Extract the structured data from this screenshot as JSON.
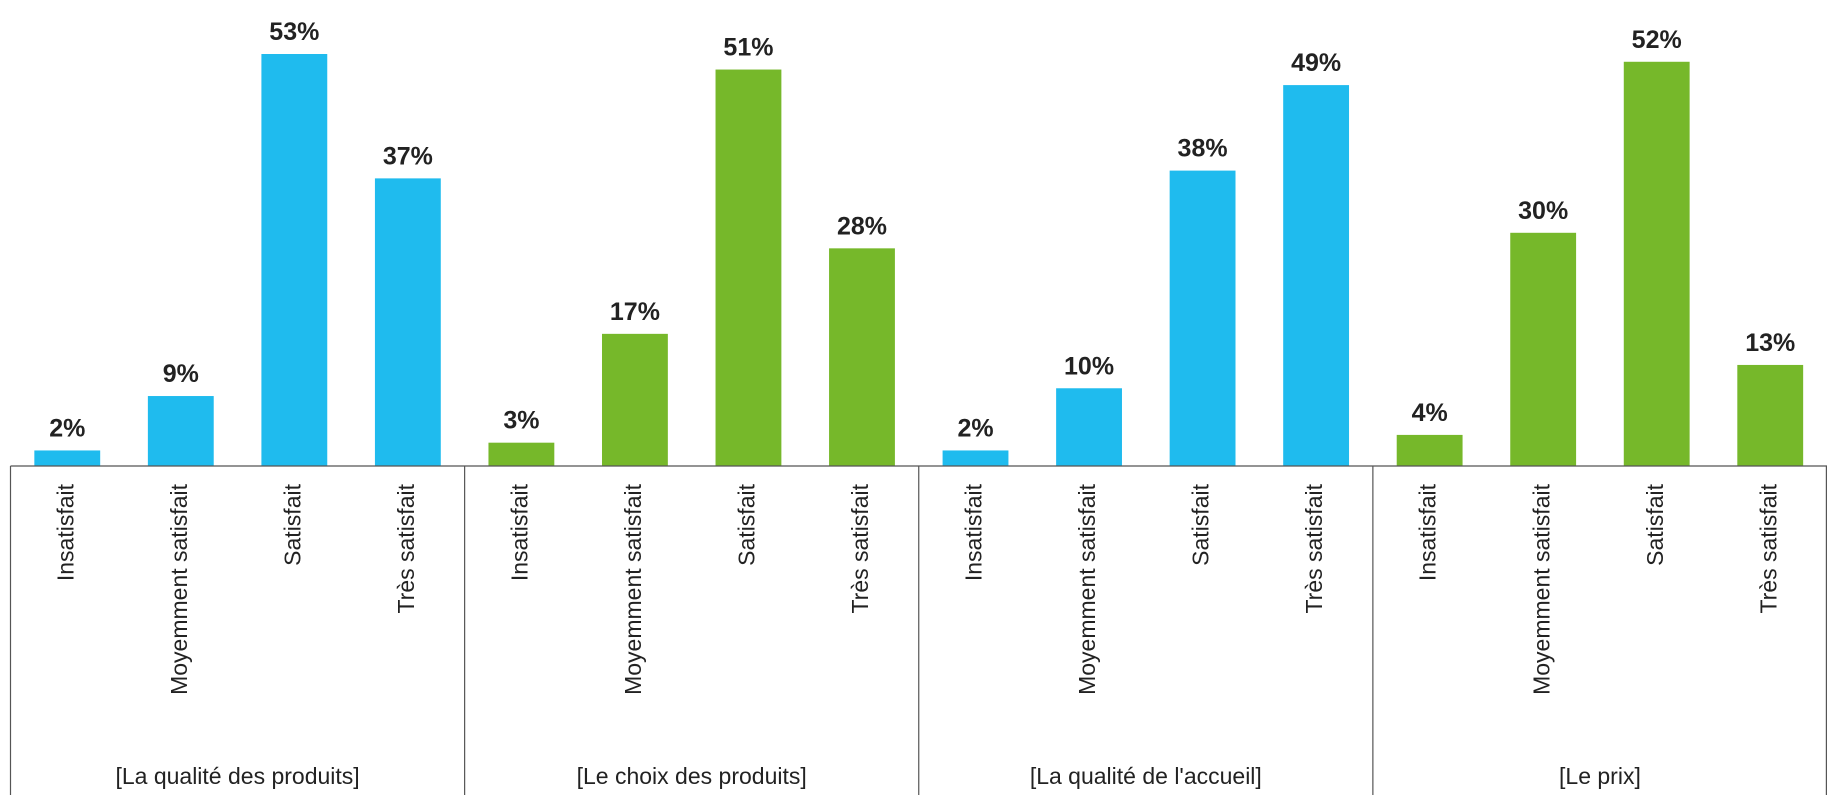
{
  "chart_data": {
    "type": "bar",
    "groups": [
      {
        "name": "[La qualité des produits]",
        "color": "#1fbbee",
        "categories": [
          "Insatisfait",
          "Moyemment satisfait",
          "Satisfait",
          "Très satisfait"
        ],
        "values": [
          2,
          9,
          53,
          37
        ],
        "value_labels": [
          "2%",
          "9%",
          "53%",
          "37%"
        ]
      },
      {
        "name": "[Le choix des produits]",
        "color": "#76b82a",
        "categories": [
          "Insatisfait",
          "Moyemment satisfait",
          "Satisfait",
          "Très satisfait"
        ],
        "values": [
          3,
          17,
          51,
          28
        ],
        "value_labels": [
          "3%",
          "17%",
          "51%",
          "28%"
        ]
      },
      {
        "name": "[La qualité de l'accueil]",
        "color": "#1fbbee",
        "categories": [
          "Insatisfait",
          "Moyemment satisfait",
          "Satisfait",
          "Très satisfait"
        ],
        "values": [
          2,
          10,
          38,
          49
        ],
        "value_labels": [
          "2%",
          "10%",
          "38%",
          "49%"
        ]
      },
      {
        "name": "[Le prix]",
        "color": "#76b82a",
        "categories": [
          "Insatisfait",
          "Moyemment satisfait",
          "Satisfait",
          "Très satisfait"
        ],
        "values": [
          4,
          30,
          52,
          13
        ],
        "value_labels": [
          "4%",
          "30%",
          "52%",
          "13%"
        ]
      }
    ]
  }
}
